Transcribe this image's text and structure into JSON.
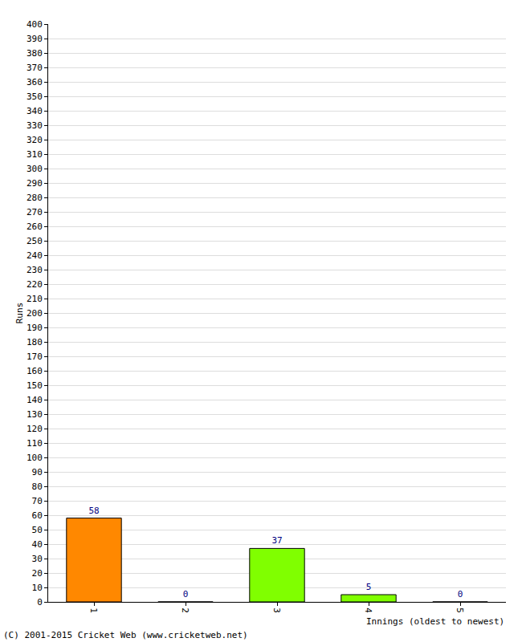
{
  "chart_data": {
    "type": "bar",
    "categories": [
      "1",
      "2",
      "3",
      "4",
      "5"
    ],
    "values": [
      58,
      0,
      37,
      5,
      0
    ],
    "colors": [
      "#ff8800",
      "#80ff00",
      "#80ff00",
      "#80ff00",
      "#80ff00"
    ],
    "x_label": "Innings (oldest to newest)",
    "y_label": "Runs",
    "annotations": [
      "(C) 2001-2015 Cricket Web (www.cricketweb.net)"
    ],
    "ylim": [
      0,
      400
    ],
    "yticks": [
      0,
      10,
      20,
      30,
      40,
      50,
      60,
      70,
      80,
      90,
      100,
      110,
      120,
      130,
      140,
      150,
      160,
      170,
      180,
      190,
      200,
      210,
      220,
      230,
      240,
      250,
      260,
      270,
      280,
      290,
      300,
      310,
      320,
      330,
      340,
      350,
      360,
      370,
      380,
      390,
      400
    ],
    "grid": true,
    "data_labels": true
  }
}
